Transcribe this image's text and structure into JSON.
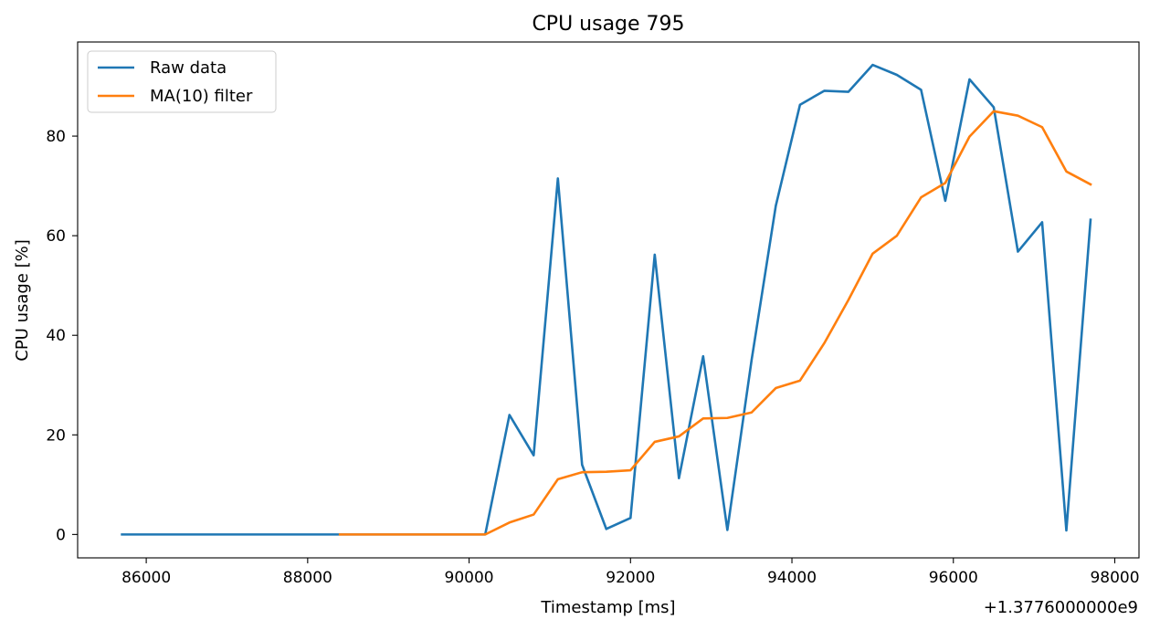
{
  "chart_data": {
    "type": "line",
    "title": "CPU usage 795",
    "xlabel": "Timestamp [ms]",
    "ylabel": "CPU usage [%]",
    "x_offset_label": "+1.3776000000e9",
    "xlim": [
      85150,
      98300
    ],
    "ylim": [
      -4.7,
      98.9
    ],
    "xticks": [
      86000,
      88000,
      90000,
      92000,
      94000,
      96000,
      98000
    ],
    "xtick_labels": [
      "86000",
      "88000",
      "90000",
      "92000",
      "94000",
      "96000",
      "98000"
    ],
    "yticks": [
      0,
      20,
      40,
      60,
      80
    ],
    "ytick_labels": [
      "0",
      "20",
      "40",
      "60",
      "80"
    ],
    "grid": false,
    "legend_position": "top-left",
    "series": [
      {
        "name": "Raw data",
        "color": "#1f77b4",
        "x": [
          85700,
          86000,
          86300,
          86600,
          86900,
          87200,
          87500,
          87800,
          88100,
          88400,
          88700,
          89000,
          89300,
          89600,
          89900,
          90200,
          90500,
          90800,
          91100,
          91400,
          91700,
          92000,
          92300,
          92600,
          92900,
          93200,
          93500,
          93800,
          94100,
          94400,
          94700,
          95000,
          95300,
          95600,
          95900,
          96200,
          96500,
          96800,
          97100,
          97400,
          97700
        ],
        "y": [
          0,
          0,
          0,
          0,
          0,
          0,
          0,
          0,
          0,
          0,
          0,
          0,
          0,
          0,
          0,
          0,
          24.0,
          15.9,
          71.5,
          14.0,
          1.1,
          3.3,
          56.2,
          11.3,
          35.8,
          0.9,
          35.0,
          66.0,
          86.3,
          89.1,
          88.9,
          94.3,
          92.3,
          89.3,
          67.0,
          91.4,
          85.8,
          56.8,
          62.7,
          0.8,
          63.2
        ]
      },
      {
        "name": "MA(10) filter",
        "color": "#ff7f0e",
        "x": [
          88400,
          88700,
          89000,
          89300,
          89600,
          89900,
          90200,
          90500,
          90800,
          91100,
          91400,
          91700,
          92000,
          92300,
          92600,
          92900,
          93200,
          93500,
          93800,
          94100,
          94400,
          94700,
          95000,
          95300,
          95600,
          95900,
          96200,
          96500,
          96800,
          97100,
          97400,
          97700
        ],
        "y": [
          0,
          0,
          0,
          0,
          0,
          0,
          0,
          2.4,
          4.0,
          11.1,
          12.5,
          12.6,
          12.9,
          18.6,
          19.7,
          23.3,
          23.4,
          24.5,
          29.4,
          30.9,
          38.4,
          47.1,
          56.4,
          60.0,
          67.7,
          70.6,
          79.9,
          85.0,
          84.1,
          81.8,
          72.9,
          70.3
        ]
      }
    ]
  }
}
